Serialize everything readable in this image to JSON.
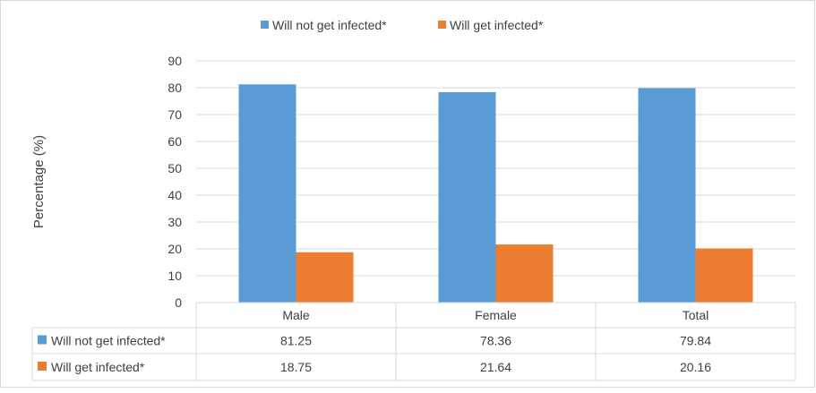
{
  "chart_data": {
    "type": "bar",
    "title": "",
    "xlabel": "",
    "ylabel": "Percentage (%)",
    "ylim": [
      0,
      90
    ],
    "yticks": [
      0,
      10,
      20,
      30,
      40,
      50,
      60,
      70,
      80,
      90
    ],
    "grid": true,
    "legend_position": "top",
    "categories": [
      "Male",
      "Female",
      "Total"
    ],
    "series": [
      {
        "name": "Will not get infected*",
        "color": "#5b9bd5",
        "values": [
          81.25,
          78.36,
          79.84
        ],
        "labels": [
          "81.25",
          "78.36",
          "79.84"
        ]
      },
      {
        "name": "Will get infected*",
        "color": "#ed7d31",
        "values": [
          18.75,
          21.64,
          20.16
        ],
        "labels": [
          "18.75",
          "21.64",
          "20.16"
        ]
      }
    ],
    "data_table": true
  }
}
